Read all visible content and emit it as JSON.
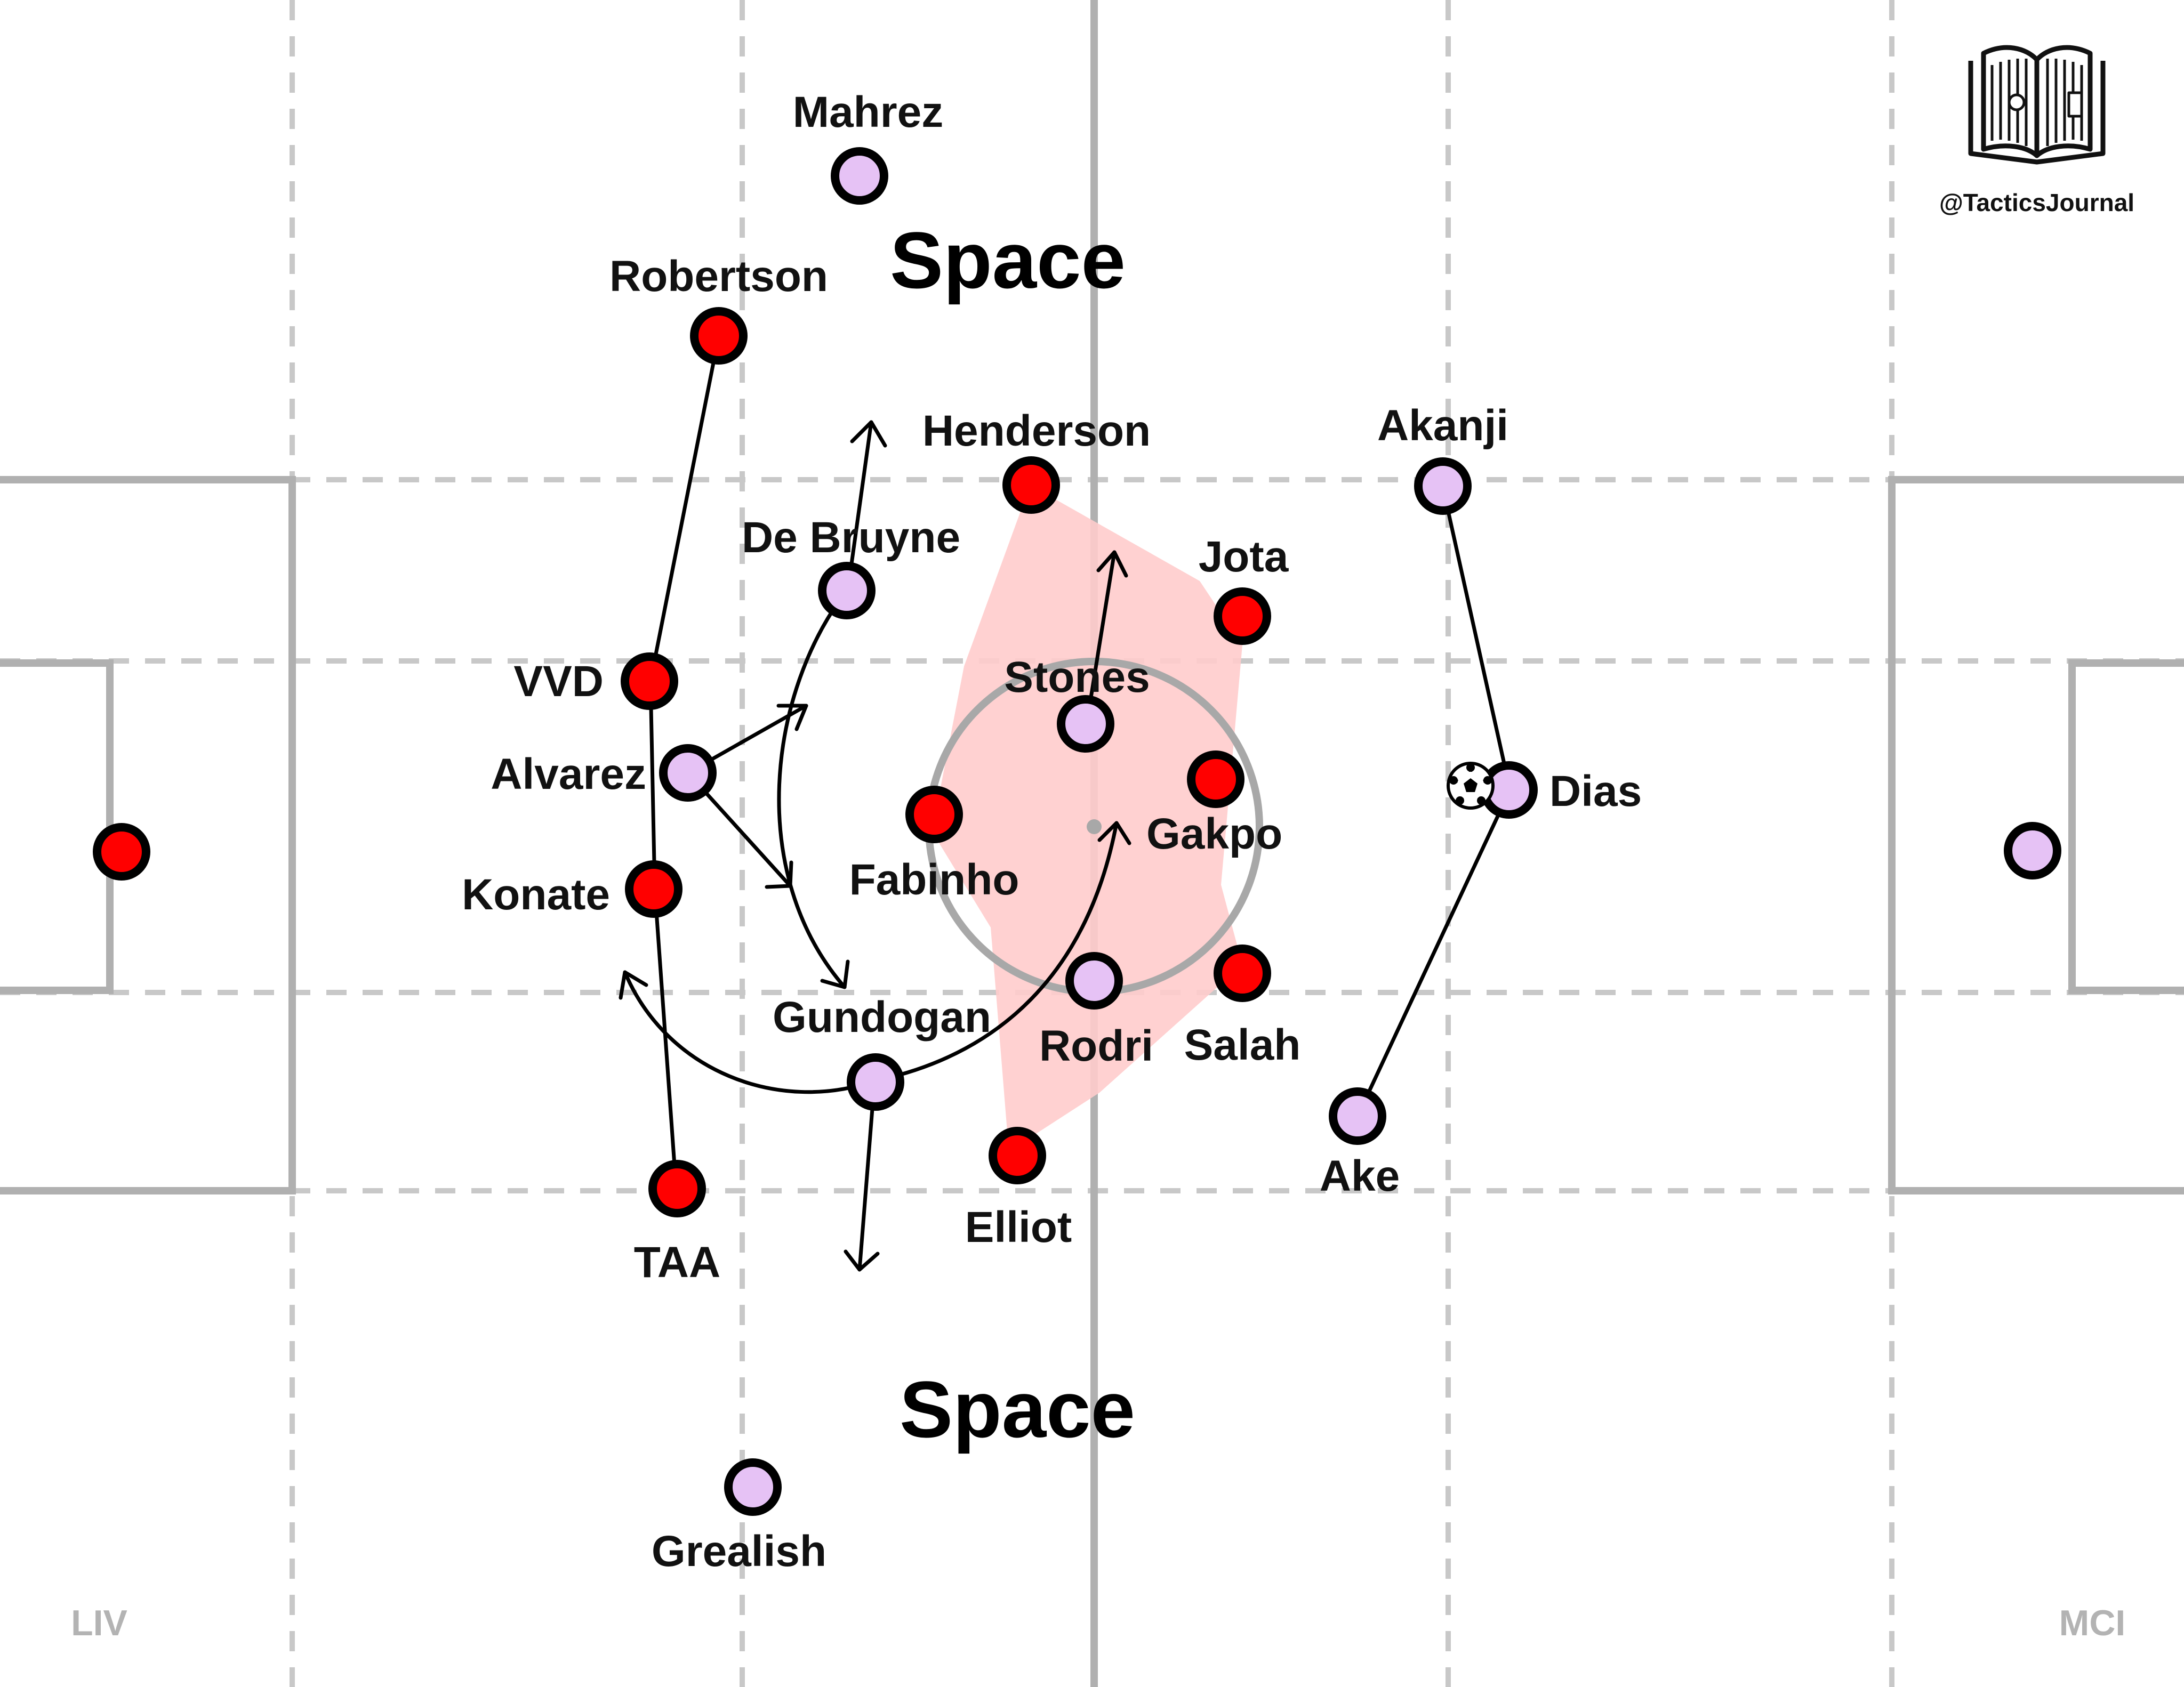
{
  "brand": {
    "handle": "@TacticsJournal",
    "logo": "book-pitch-icon"
  },
  "teams": {
    "left": "LIV",
    "right": "MCI"
  },
  "colors": {
    "liverpool": "#ff0000",
    "city": "#e6c2f5",
    "zone": "#ffcccc",
    "pitch_lines": "#b0b0b0"
  },
  "annotations": {
    "space_top": "Space",
    "space_bottom": "Space"
  },
  "ball": {
    "icon": "soccer-ball-icon"
  },
  "players": {
    "mahrez": "Mahrez",
    "robertson": "Robertson",
    "henderson": "Henderson",
    "akanji": "Akanji",
    "de_bruyne": "De Bruyne",
    "jota": "Jota",
    "stones": "Stones",
    "vvd": "VVD",
    "alvarez": "Alvarez",
    "gakpo": "Gakpo",
    "dias": "Dias",
    "fabinho": "Fabinho",
    "konate": "Konate",
    "gundogan": "Gundogan",
    "rodri": "Rodri",
    "salah": "Salah",
    "ake": "Ake",
    "elliot": "Elliot",
    "taa": "TAA",
    "grealish": "Grealish"
  }
}
